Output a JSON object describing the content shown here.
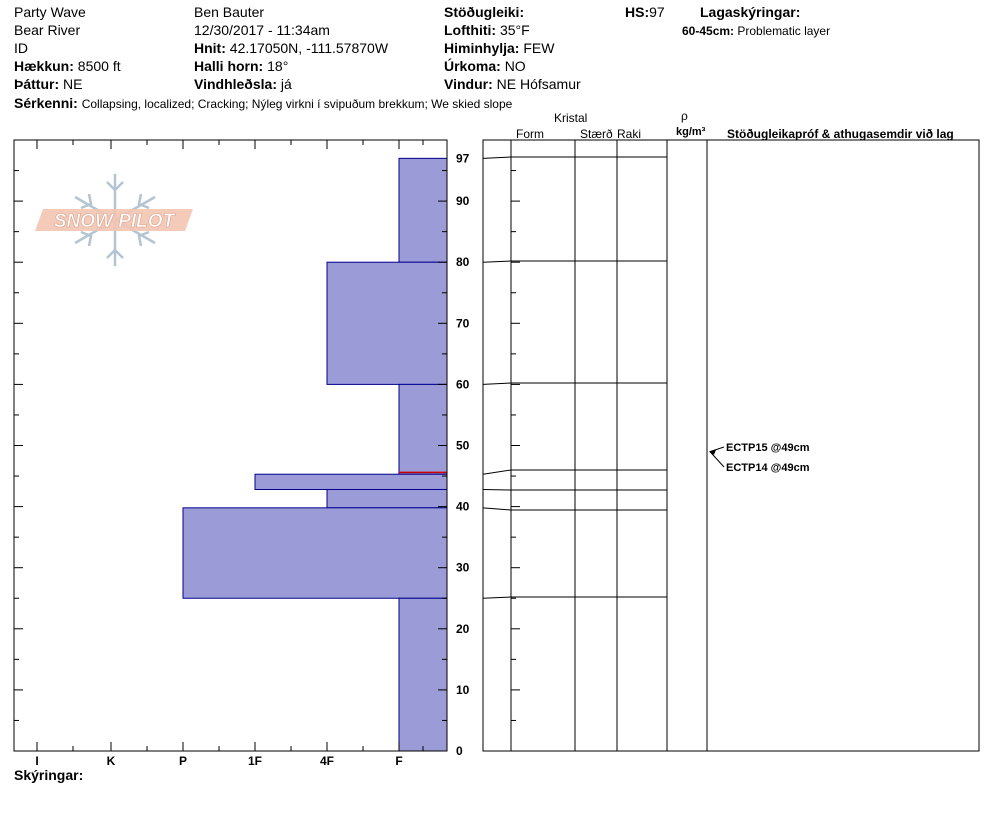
{
  "header": {
    "col1": [
      "Party Wave",
      "Bear River",
      "ID"
    ],
    "elevation": {
      "label": "Hækkun:",
      "value": "8500 ft"
    },
    "aspect": {
      "label": "Þáttur:",
      "value": "NE"
    },
    "observer": "Ben Bauter",
    "datetime": "12/30/2017 - 11:34am",
    "coords": {
      "label": "Hnit:",
      "value": "42.17050N, -111.57870W"
    },
    "slope": {
      "label": "Halli horn:",
      "value": "18°"
    },
    "wind_loading": {
      "label": "Vindhleðsla:",
      "value": "já"
    },
    "stability": {
      "label": "Stöðugleiki:",
      "value": ""
    },
    "air_temp": {
      "label": "Lofthiti:",
      "value": "35°F"
    },
    "sky": {
      "label": "Himinhylja:",
      "value": "FEW"
    },
    "precip": {
      "label": "Úrkoma:",
      "value": "NO"
    },
    "wind": {
      "label": "Vindur:",
      "value": "NE Hófsamur"
    },
    "hs": {
      "label": "HS:",
      "value": "97"
    },
    "layer_notes": {
      "label": "Lagaskýringar:",
      "range": "60-45cm:",
      "text": "Problematic layer"
    },
    "features": {
      "label": "Sérkenni:",
      "value": "Collapsing, localized;  Cracking;  Nýleg virkni í svipuðum brekkum;  We skied slope"
    }
  },
  "logo": {
    "text": "SNOW PILOT"
  },
  "table_headers": {
    "crystal": "Kristal",
    "form": "Form",
    "size": "Stærð",
    "moisture": "Raki",
    "rho": "ρ",
    "density_unit": "kg/m³",
    "comments": "Stöðugleikapróf & athugasemdir við lag"
  },
  "footer": {
    "label": "Skýringar:"
  },
  "colors": {
    "fill": "#9b9bd7",
    "border": "#00008b",
    "red": "#cc0000"
  },
  "chart_data": {
    "type": "bar",
    "orientation": "horizontal",
    "hardness_scale": [
      "I",
      "K",
      "P",
      "1F",
      "4F",
      "F"
    ],
    "depth_ticks": [
      0,
      10,
      20,
      30,
      40,
      50,
      60,
      70,
      80,
      90,
      97
    ],
    "ylim": [
      0,
      97
    ],
    "layers": [
      {
        "top": 97,
        "bottom": 80,
        "hardness": "F"
      },
      {
        "top": 80,
        "bottom": 60,
        "hardness": "4F"
      },
      {
        "top": 60,
        "bottom": 45.3,
        "hardness": "F"
      },
      {
        "top": 45.3,
        "bottom": 42.8,
        "hardness": "1F"
      },
      {
        "top": 42.8,
        "bottom": 39.8,
        "hardness": "4F"
      },
      {
        "top": 39.8,
        "bottom": 25,
        "hardness": "P"
      },
      {
        "top": 25,
        "bottom": 0,
        "hardness": "F"
      }
    ],
    "problem_layer_depth": 45.6,
    "tests": [
      {
        "label": "ECTP15 @49cm",
        "depth": 49
      },
      {
        "label": "ECTP14 @49cm",
        "depth": 49
      }
    ]
  }
}
